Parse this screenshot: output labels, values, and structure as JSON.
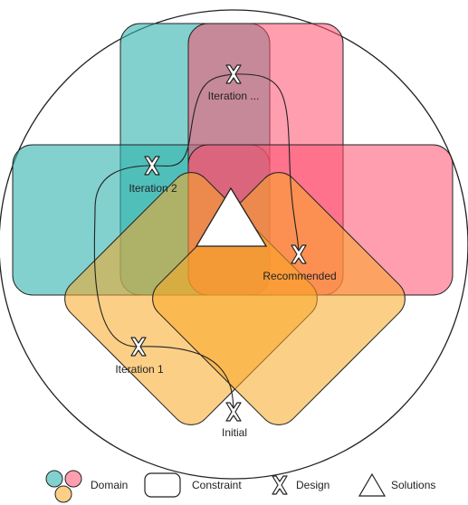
{
  "colors": {
    "teal": "#2fb3ad",
    "pink": "#ff4f6e",
    "orange": "#f9a825",
    "outline": "#222222"
  },
  "points": {
    "iteration_3": "Iteration ...",
    "iteration_2": "Iteration 2",
    "recommended": "Recommended",
    "iteration_1": "Iteration 1",
    "initial": "Initial"
  },
  "legend": {
    "domain": "Domain",
    "constraint": "Constraint",
    "design": "Design",
    "solutions": "Solutions"
  }
}
